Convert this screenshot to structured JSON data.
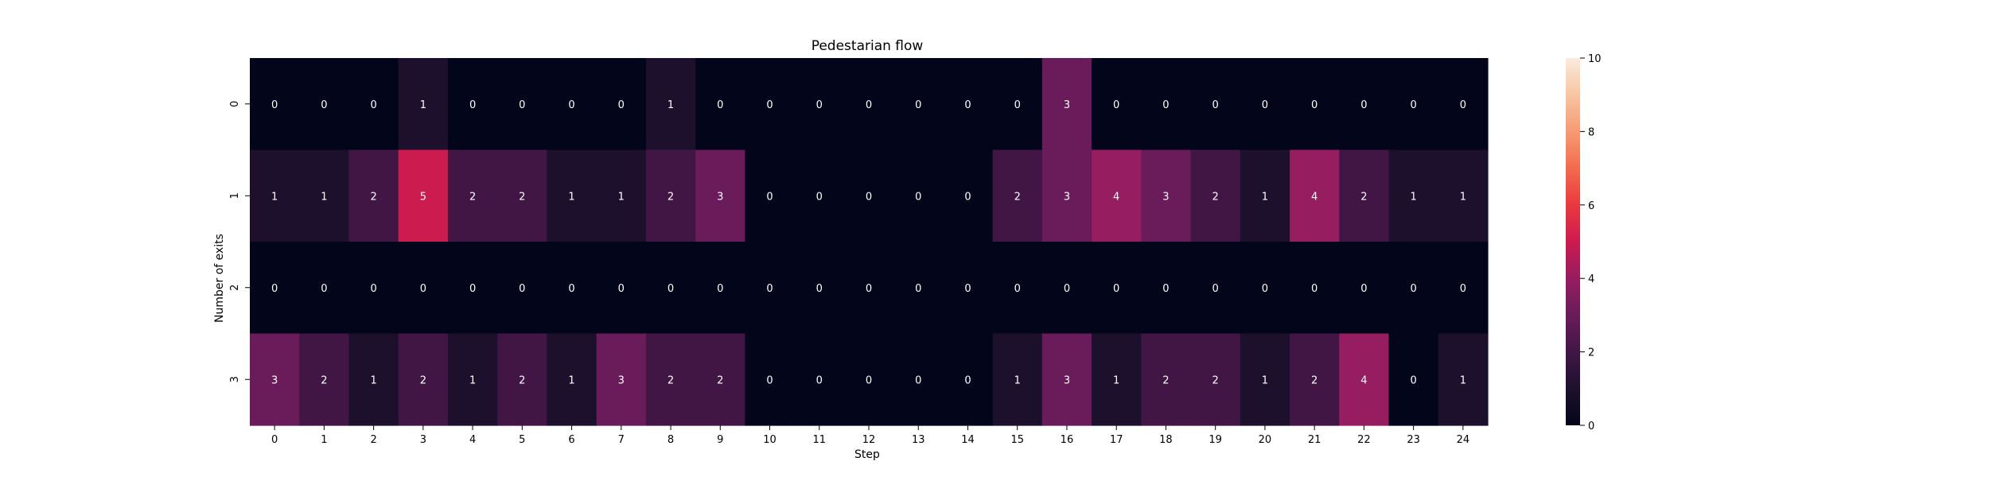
{
  "chart_data": {
    "type": "heatmap",
    "title": "Pedestarian flow",
    "xlabel": "Step",
    "ylabel": "Number of exits",
    "x_categories": [
      "0",
      "1",
      "2",
      "3",
      "4",
      "5",
      "6",
      "7",
      "8",
      "9",
      "10",
      "11",
      "12",
      "13",
      "14",
      "15",
      "16",
      "17",
      "18",
      "19",
      "20",
      "21",
      "22",
      "23",
      "24"
    ],
    "y_categories": [
      "0",
      "1",
      "2",
      "3"
    ],
    "values": [
      [
        0,
        0,
        0,
        1,
        0,
        0,
        0,
        0,
        1,
        0,
        0,
        0,
        0,
        0,
        0,
        0,
        3,
        0,
        0,
        0,
        0,
        0,
        0,
        0,
        0
      ],
      [
        1,
        1,
        2,
        5,
        2,
        2,
        1,
        1,
        2,
        3,
        0,
        0,
        0,
        0,
        0,
        2,
        3,
        4,
        3,
        2,
        1,
        4,
        2,
        1,
        1
      ],
      [
        0,
        0,
        0,
        0,
        0,
        0,
        0,
        0,
        0,
        0,
        0,
        0,
        0,
        0,
        0,
        0,
        0,
        0,
        0,
        0,
        0,
        0,
        0,
        0,
        0
      ],
      [
        3,
        2,
        1,
        2,
        1,
        2,
        1,
        3,
        2,
        2,
        0,
        0,
        0,
        0,
        0,
        1,
        3,
        1,
        2,
        2,
        1,
        2,
        4,
        0,
        1
      ]
    ],
    "colorbar": {
      "min": 0,
      "max": 10,
      "ticks": [
        0,
        2,
        4,
        6,
        8,
        10
      ],
      "colormap": "rocket",
      "position": "right"
    },
    "grid": false
  }
}
